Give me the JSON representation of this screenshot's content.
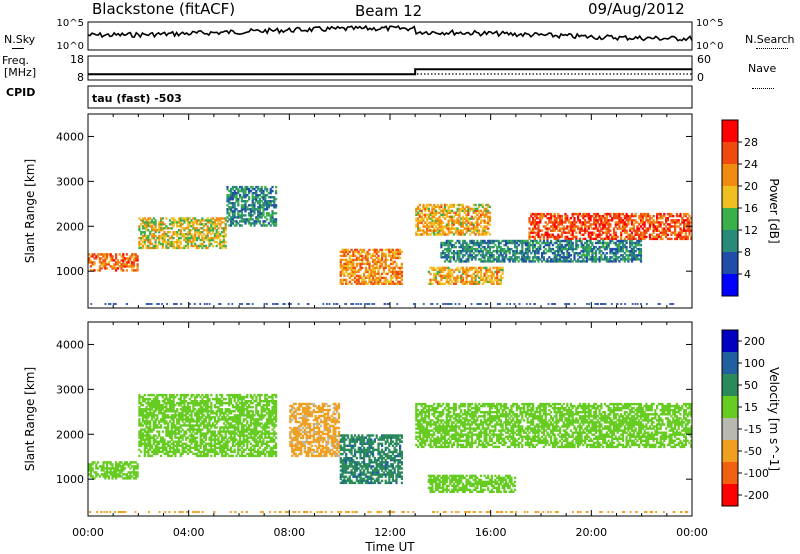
{
  "header": {
    "station": "Blackstone (fitACF)",
    "beam": "Beam 12",
    "date": "09/Aug/2012"
  },
  "strip_labels": {
    "nsky": "N.Sky",
    "nsearch": "N.Search",
    "freq_top": "Freq.",
    "freq_unit": "[MHz]",
    "nave": "Nave",
    "cpid": "CPID",
    "cpid_value": "tau (fast) -503"
  },
  "noise_axis": {
    "top": "10^5",
    "bottom": "10^0"
  },
  "freq_axis": {
    "top": "18",
    "bottom": "8"
  },
  "nave_axis": {
    "top": "60",
    "bottom": "0"
  },
  "x_axis": {
    "label": "Time UT",
    "ticks": [
      "00:00",
      "04:00",
      "08:00",
      "12:00",
      "16:00",
      "20:00",
      "00:00"
    ]
  },
  "y_axis": {
    "label": "Slant Range [km]",
    "ticks": [
      "1000",
      "2000",
      "3000",
      "4000"
    ]
  },
  "power_colorbar": {
    "label": "Power [dB]",
    "ticks": [
      "4",
      "8",
      "12",
      "16",
      "20",
      "24",
      "28"
    ],
    "colors": [
      "#0000ff",
      "#1f4da8",
      "#2a8a7a",
      "#3ab04a",
      "#f0c020",
      "#f08a10",
      "#f04a10",
      "#ff0000"
    ]
  },
  "velocity_colorbar": {
    "label": "Velocity [m s^-1]",
    "ticks": [
      "200",
      "100",
      "50",
      "15",
      "-15",
      "-50",
      "-100",
      "-200"
    ],
    "colors": [
      "#0000c0",
      "#2060a0",
      "#2a8a5a",
      "#66cc22",
      "#b8b8b0",
      "#f0a020",
      "#f06010",
      "#ff0000"
    ]
  },
  "chart_data": {
    "type": "heatmap",
    "title": "Blackstone (fitACF)",
    "xlabel": "Time UT",
    "ylabel": "Slant Range [km]",
    "xlim_hours": [
      0,
      24
    ],
    "ylim_km": [
      180,
      4500
    ],
    "series": [
      {
        "name": "Power [dB]",
        "bands": [
          {
            "t": [
              0.0,
              2.0
            ],
            "r": [
              1000,
              1400
            ],
            "value": 24
          },
          {
            "t": [
              2.0,
              5.5
            ],
            "r": [
              1500,
              2200
            ],
            "value": 18
          },
          {
            "t": [
              5.5,
              7.5
            ],
            "r": [
              2000,
              2900
            ],
            "value": 10
          },
          {
            "t": [
              10.0,
              12.5
            ],
            "r": [
              700,
              1500
            ],
            "value": 22
          },
          {
            "t": [
              13.0,
              16.0
            ],
            "r": [
              1800,
              2500
            ],
            "value": 20
          },
          {
            "t": [
              13.5,
              16.5
            ],
            "r": [
              700,
              1100
            ],
            "value": 20
          },
          {
            "t": [
              17.5,
              24.0
            ],
            "r": [
              1700,
              2300
            ],
            "value": 26
          },
          {
            "t": [
              14.0,
              22.0
            ],
            "r": [
              1200,
              1700
            ],
            "value": 10
          }
        ]
      },
      {
        "name": "Velocity [m s^-1]",
        "bands": [
          {
            "t": [
              0.0,
              2.0
            ],
            "r": [
              1000,
              1400
            ],
            "value": 0
          },
          {
            "t": [
              2.0,
              7.5
            ],
            "r": [
              1500,
              2900
            ],
            "value": 0
          },
          {
            "t": [
              8.0,
              10.0
            ],
            "r": [
              1500,
              2700
            ],
            "value": -60
          },
          {
            "t": [
              10.0,
              12.5
            ],
            "r": [
              900,
              2000
            ],
            "value": 40
          },
          {
            "t": [
              13.0,
              24.0
            ],
            "r": [
              1700,
              2700
            ],
            "value": 0
          },
          {
            "t": [
              13.5,
              17.0
            ],
            "r": [
              700,
              1100
            ],
            "value": 0
          }
        ]
      }
    ],
    "frequency_mhz": [
      {
        "t": [
          0,
          13
        ],
        "value": 10.4
      },
      {
        "t": [
          13,
          24
        ],
        "value": 12.5
      }
    ],
    "nave": [
      {
        "t": [
          0,
          24
        ],
        "value": 18
      }
    ]
  }
}
